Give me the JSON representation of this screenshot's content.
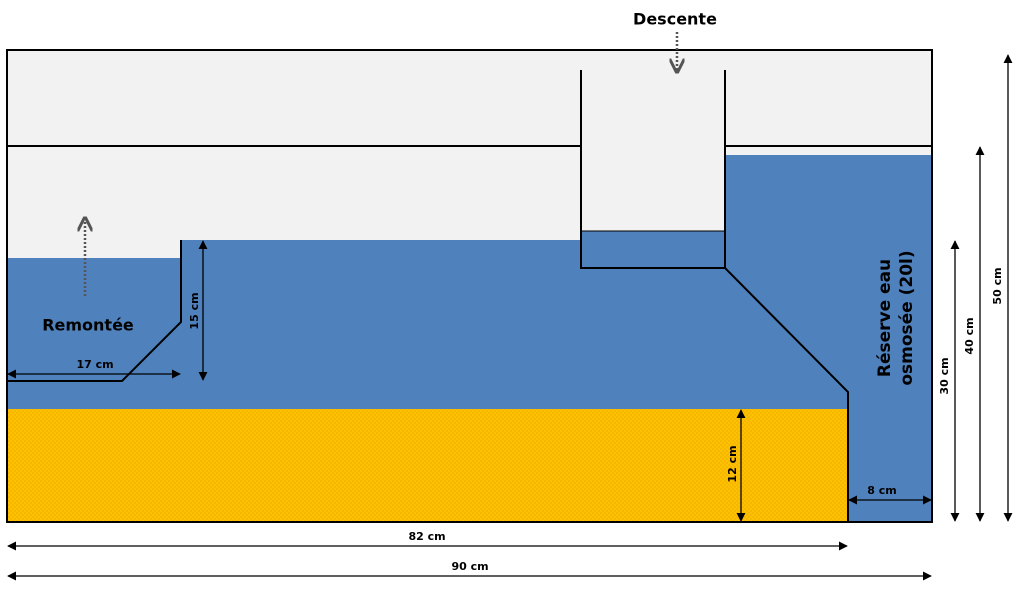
{
  "labels": {
    "descente": "Descente",
    "remontee": "Remontée",
    "reserve": [
      "Réserve eau",
      "osmosée (20l)"
    ]
  },
  "dimensions": {
    "overflow_width": "17 cm",
    "overflow_height": "15 cm",
    "sand_height": "12 cm",
    "reserve_width": "8 cm",
    "water_height": "30 cm",
    "tank_inner_height": "40 cm",
    "tank_height": "50 cm",
    "sand_width": "82 cm",
    "tank_width": "90 cm"
  }
}
